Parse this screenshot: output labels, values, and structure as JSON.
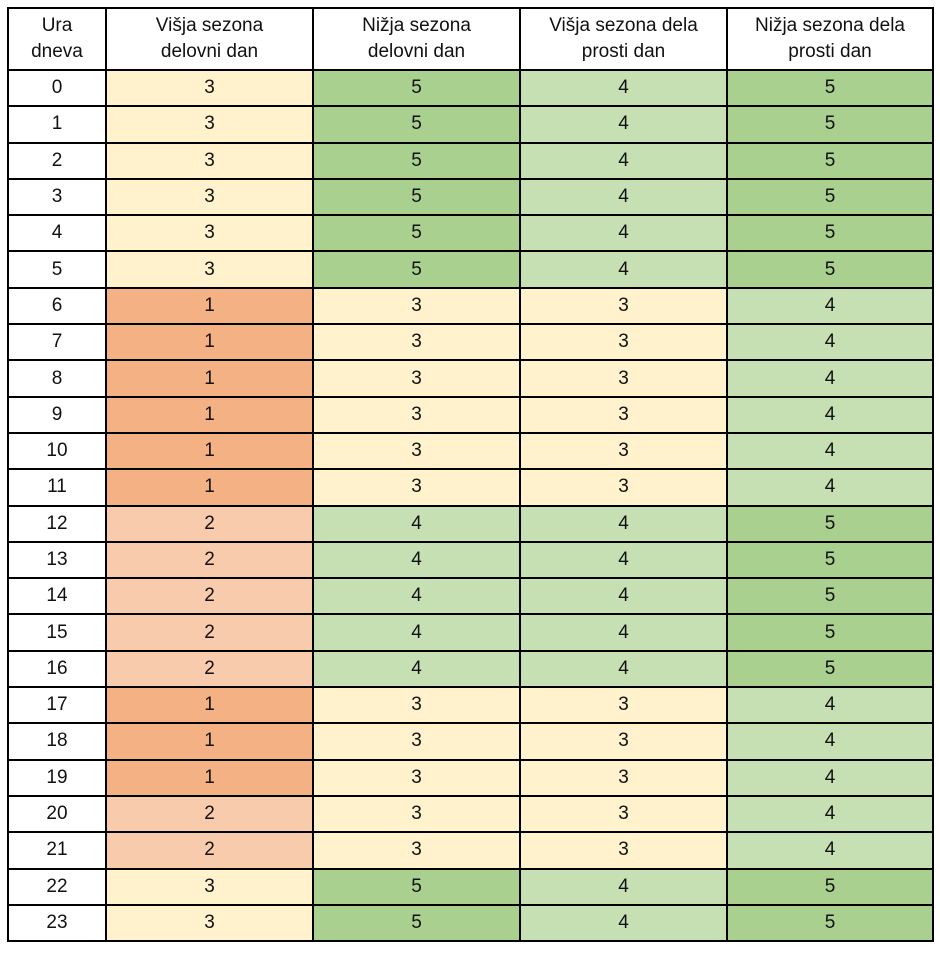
{
  "table": {
    "header": [
      "Ura\ndneva",
      "Višja sezona\ndelovni dan",
      "Nižja sezona\ndelovni dan",
      "Višja sezona dela\nprosti dan",
      "Nižja sezona dela\nprosti dan"
    ],
    "level_colors": [
      "#f4b183",
      "#f8cbad",
      "#fff2cc",
      "#c6e0b4",
      "#a9d08e"
    ],
    "rows": [
      [
        0,
        3,
        5,
        4,
        5
      ],
      [
        1,
        3,
        5,
        4,
        5
      ],
      [
        2,
        3,
        5,
        4,
        5
      ],
      [
        3,
        3,
        5,
        4,
        5
      ],
      [
        4,
        3,
        5,
        4,
        5
      ],
      [
        5,
        3,
        5,
        4,
        5
      ],
      [
        6,
        1,
        3,
        3,
        4
      ],
      [
        7,
        1,
        3,
        3,
        4
      ],
      [
        8,
        1,
        3,
        3,
        4
      ],
      [
        9,
        1,
        3,
        3,
        4
      ],
      [
        10,
        1,
        3,
        3,
        4
      ],
      [
        11,
        1,
        3,
        3,
        4
      ],
      [
        12,
        2,
        4,
        4,
        5
      ],
      [
        13,
        2,
        4,
        4,
        5
      ],
      [
        14,
        2,
        4,
        4,
        5
      ],
      [
        15,
        2,
        4,
        4,
        5
      ],
      [
        16,
        2,
        4,
        4,
        5
      ],
      [
        17,
        1,
        3,
        3,
        4
      ],
      [
        18,
        1,
        3,
        3,
        4
      ],
      [
        19,
        1,
        3,
        3,
        4
      ],
      [
        20,
        2,
        3,
        3,
        4
      ],
      [
        21,
        2,
        3,
        3,
        4
      ],
      [
        22,
        3,
        5,
        4,
        5
      ],
      [
        23,
        3,
        5,
        4,
        5
      ]
    ]
  }
}
